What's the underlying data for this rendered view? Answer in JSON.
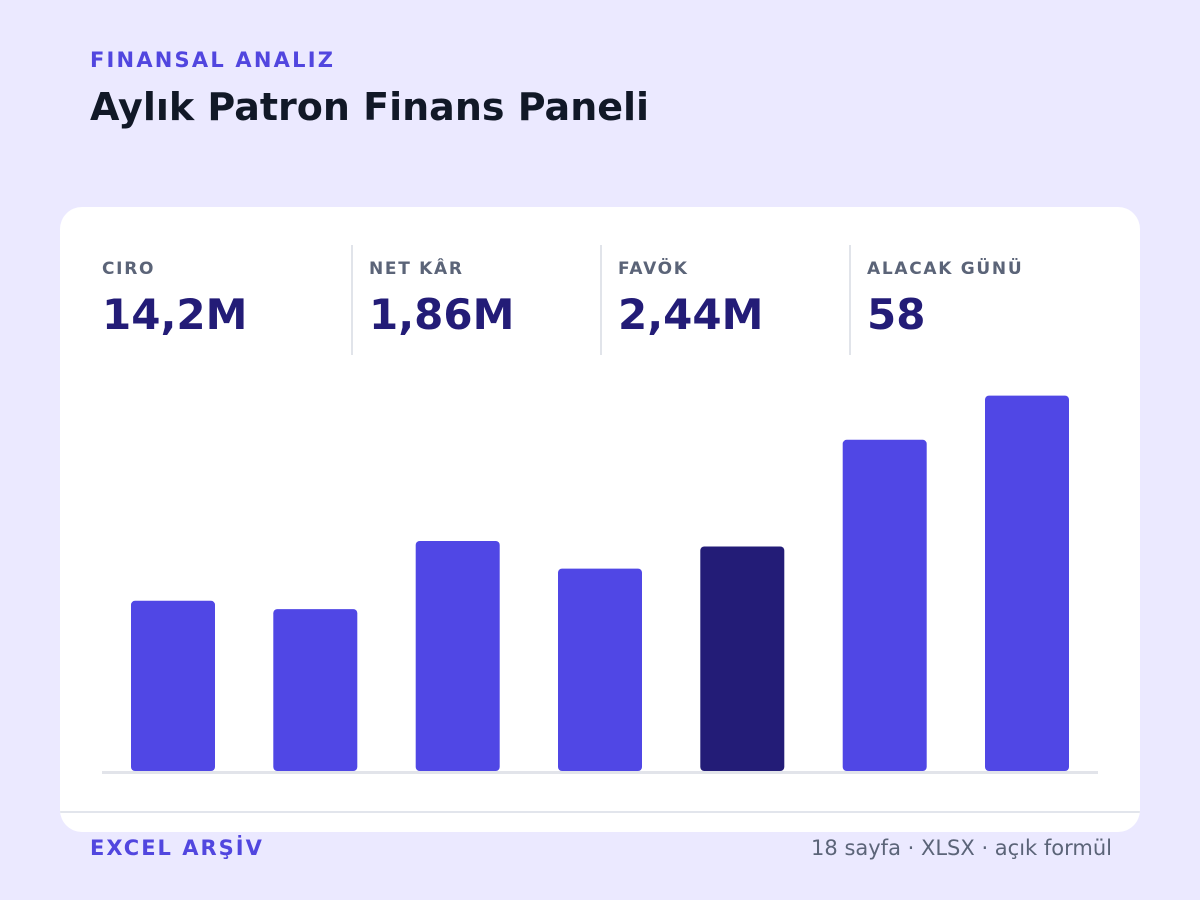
{
  "header": {
    "eyebrow": "FINANSAL ANALIZ",
    "title": "Aylık Patron Finans Paneli"
  },
  "kpis": [
    {
      "label": "CIRO",
      "value": "14,2M"
    },
    {
      "label": "NET KÂR",
      "value": "1,86M"
    },
    {
      "label": "FAVÖK",
      "value": "2,44M"
    },
    {
      "label": "ALACAK GÜNÜ",
      "value": "58"
    }
  ],
  "chart_data": {
    "type": "bar",
    "values": [
      1.85,
      1.76,
      2.5,
      2.2,
      2.44,
      3.6,
      4.08
    ],
    "ylim": [
      0,
      4.5
    ],
    "highlight_index": 4,
    "grid": false,
    "legend": "none",
    "colors": {
      "bar": "#5047e5",
      "highlight": "#231c77",
      "baseline": "#e2e4ea"
    }
  },
  "footer": {
    "left": "EXCEL ARŞİV",
    "right": "18 sayfa · XLSX · açık formül"
  },
  "colors": {
    "background": "#ebe9ff",
    "card": "#ffffff",
    "accent": "#5146df",
    "title": "#111827",
    "kpi_value": "#231c77",
    "muted": "#5b6478"
  }
}
